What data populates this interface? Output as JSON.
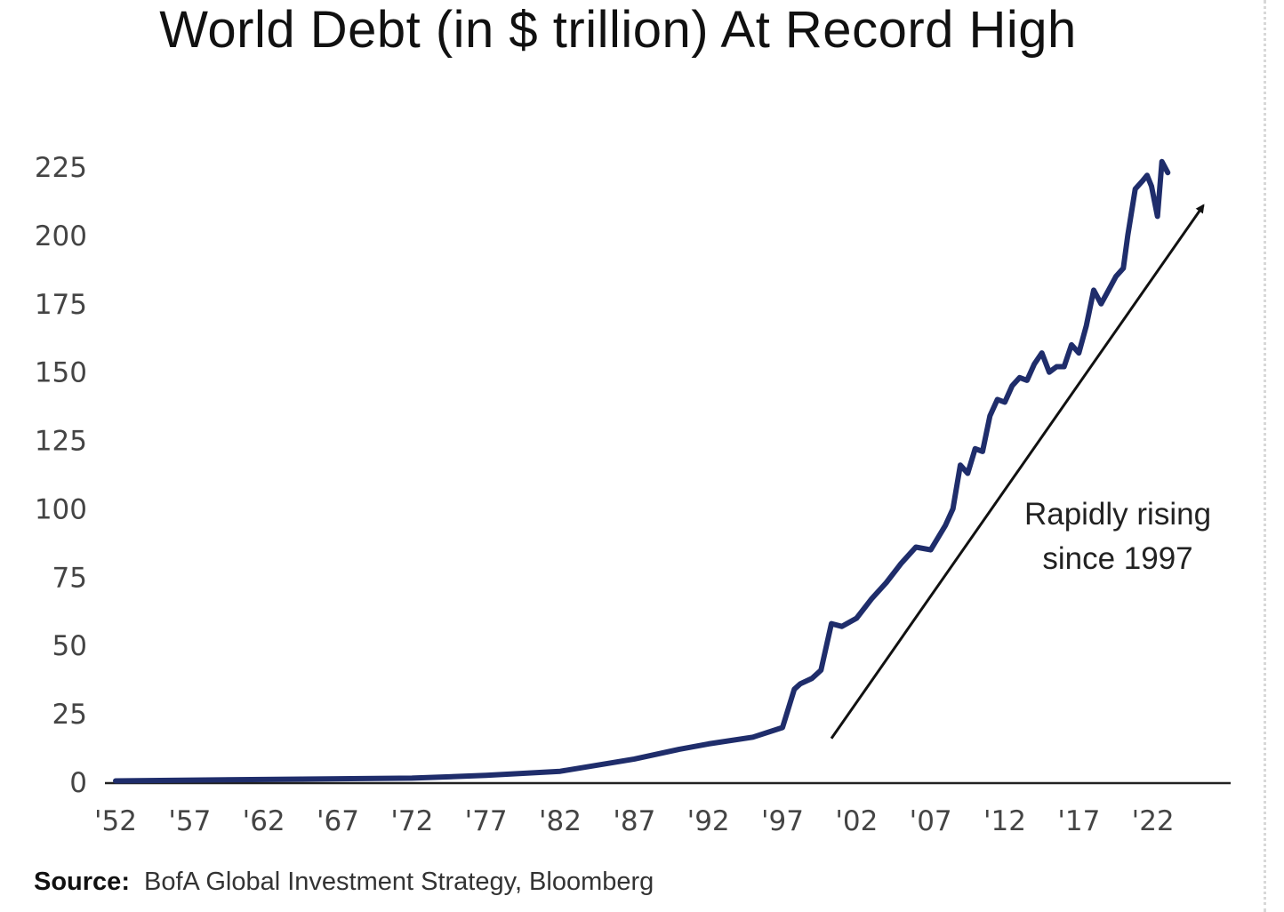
{
  "chart_data": {
    "type": "line",
    "title": "World Debt (in $ trillion) At Record High",
    "xlabel": "",
    "ylabel": "",
    "xlim": [
      1952,
      2027
    ],
    "ylim": [
      0,
      225
    ],
    "x_ticks": [
      1952,
      1957,
      1962,
      1967,
      1972,
      1977,
      1982,
      1987,
      1992,
      1997,
      2002,
      2007,
      2012,
      2017,
      2022
    ],
    "x_tick_labels": [
      "'52",
      "'57",
      "'62",
      "'67",
      "'72",
      "'77",
      "'82",
      "'87",
      "'92",
      "'97",
      "'02",
      "'07",
      "'12",
      "'17",
      "'22"
    ],
    "y_ticks": [
      0,
      25,
      50,
      75,
      100,
      125,
      150,
      175,
      200,
      225
    ],
    "y_tick_labels": [
      "0",
      "25",
      "50",
      "75",
      "100",
      "125",
      "150",
      "175",
      "200",
      "225"
    ],
    "grid": false,
    "legend": "none",
    "line_color": "#1f2d6b",
    "series": [
      {
        "x": [
          1952,
          1962,
          1972,
          1977,
          1982,
          1987,
          1990,
          1992,
          1995,
          1997,
          1997.8,
          1998.2,
          1999,
          1999.6,
          2000.3,
          2001,
          2002,
          2003,
          2004,
          2005,
          2006,
          2007,
          2008,
          2008.5,
          2009,
          2009.5,
          2010,
          2010.5,
          2011,
          2011.5,
          2012,
          2012.5,
          2013,
          2013.5,
          2014,
          2014.5,
          2015,
          2015.5,
          2016,
          2016.5,
          2017,
          2017.5,
          2018,
          2018.5,
          2019,
          2019.5,
          2020,
          2020.3,
          2020.8,
          2021.3,
          2021.6,
          2021.9,
          2022.3,
          2022.6,
          2023
        ],
        "y": [
          0.5,
          1,
          1.5,
          2.5,
          4,
          8.5,
          12,
          14,
          16.5,
          20,
          34,
          36,
          38,
          41,
          58,
          57,
          60,
          67,
          73,
          80,
          86,
          85,
          94,
          100,
          116,
          113,
          122,
          121,
          134,
          140,
          139,
          145,
          148,
          147,
          153,
          157,
          150,
          152,
          152,
          160,
          157,
          167,
          180,
          175,
          180,
          185,
          188,
          200,
          217,
          220,
          222,
          218,
          207,
          227,
          223
        ]
      }
    ],
    "annotations": [
      {
        "text_lines": [
          "Rapidly rising",
          "since 1997"
        ],
        "arrow_from": [
          2000.3,
          16
        ],
        "arrow_to": [
          2025.4,
          211
        ]
      }
    ]
  },
  "source": {
    "label": "Source:",
    "text": "BofA Global Investment Strategy, Bloomberg"
  }
}
